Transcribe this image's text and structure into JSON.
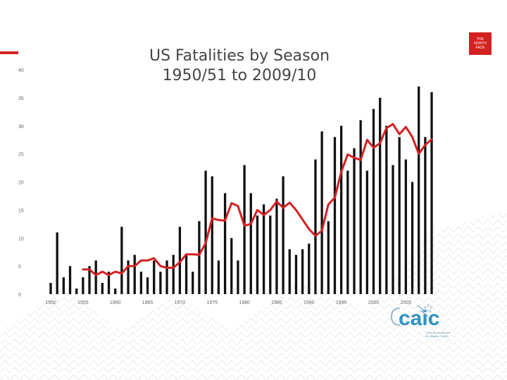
{
  "slide": {
    "title_line1": "US Fatalities by Season",
    "title_line2": "1950/51 to 2009/10",
    "tnf_logo_text": "THE NORTH FACE",
    "caic_logo_word": "caic",
    "caic_logo_sub": "Colorado Avalanche Information Center",
    "colors": {
      "accent": "#d42020",
      "bars": "#111111",
      "line": "#d42020",
      "caic": "#2f93c4"
    }
  },
  "chart_data": {
    "type": "bar",
    "title": "US Fatalities by Season",
    "subtitle": "1950/51 to 2009/10",
    "xlabel": "",
    "ylabel": "",
    "ylim": [
      0,
      40
    ],
    "yticks": [
      0,
      5,
      10,
      15,
      20,
      25,
      30,
      35,
      40
    ],
    "xtick_labels": [
      "1950",
      "1955",
      "1960",
      "1965",
      "1970",
      "1975",
      "1980",
      "1985",
      "1990",
      "1995",
      "2000",
      "2005"
    ],
    "grid": false,
    "legend": "none",
    "categories": [
      "1950",
      "1951",
      "1952",
      "1953",
      "1954",
      "1955",
      "1956",
      "1957",
      "1958",
      "1959",
      "1960",
      "1961",
      "1962",
      "1963",
      "1964",
      "1965",
      "1966",
      "1967",
      "1968",
      "1969",
      "1970",
      "1971",
      "1972",
      "1973",
      "1974",
      "1975",
      "1976",
      "1977",
      "1978",
      "1979",
      "1980",
      "1981",
      "1982",
      "1983",
      "1984",
      "1985",
      "1986",
      "1987",
      "1988",
      "1989",
      "1990",
      "1991",
      "1992",
      "1993",
      "1994",
      "1995",
      "1996",
      "1997",
      "1998",
      "1999",
      "2000",
      "2001",
      "2002",
      "2003",
      "2004",
      "2005",
      "2006",
      "2007",
      "2008",
      "2009"
    ],
    "series": [
      {
        "type": "bar",
        "values": [
          2,
          11,
          3,
          5,
          1,
          3,
          5,
          6,
          2,
          4,
          1,
          12,
          6,
          7,
          4,
          3,
          6,
          4,
          6,
          7,
          12,
          7,
          4,
          13,
          22,
          21,
          6,
          18,
          10,
          6,
          23,
          18,
          14,
          16,
          14,
          17,
          21,
          8,
          7,
          8,
          9,
          24,
          29,
          13,
          28,
          30,
          22,
          26,
          31,
          22,
          33,
          35,
          30,
          23,
          28,
          24,
          20,
          37,
          28,
          36
        ]
      },
      {
        "type": "line",
        "x": [
          "1955",
          "1956",
          "1957",
          "1958",
          "1959",
          "1960",
          "1961",
          "1962",
          "1963",
          "1964",
          "1965",
          "1966",
          "1967",
          "1968",
          "1969",
          "1970",
          "1971",
          "1972",
          "1973",
          "1974",
          "1975",
          "1976",
          "1977",
          "1978",
          "1979",
          "1980",
          "1981",
          "1982",
          "1983",
          "1984",
          "1985",
          "1986",
          "1987",
          "1988",
          "1989",
          "1990",
          "1991",
          "1992",
          "1993",
          "1994",
          "1995",
          "1996",
          "1997",
          "1998",
          "1999",
          "2000",
          "2001",
          "2002",
          "2003",
          "2004",
          "2005",
          "2006",
          "2007",
          "2008",
          "2009"
        ],
        "values": [
          4.4,
          4.4,
          3.4,
          4,
          3.4,
          4,
          3.7,
          5,
          5,
          6,
          6,
          6.4,
          5,
          4.7,
          4.7,
          5.7,
          7.1,
          7.1,
          7,
          9.1,
          13.5,
          13.2,
          13.1,
          16.2,
          15.7,
          12.2,
          12.5,
          15,
          14.1,
          15,
          16.5,
          15.4,
          16.3,
          15,
          13.3,
          11.6,
          10.4,
          11.3,
          16,
          17.2,
          21.8,
          24.9,
          24.3,
          23.9,
          27.5,
          26.1,
          26.9,
          29.6,
          30.3,
          28.5,
          29.8,
          28,
          25,
          26.6,
          27.6
        ]
      }
    ]
  }
}
